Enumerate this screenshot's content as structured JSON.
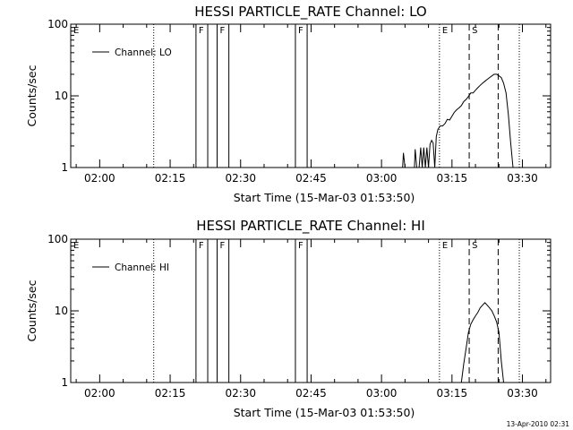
{
  "footer": {
    "timestamp": "13-Apr-2010 02:31"
  },
  "chart_data": [
    {
      "type": "line",
      "title": "HESSI PARTICLE_RATE Channel: LO",
      "xlabel": "Start Time (15-Mar-03 01:53:50)",
      "ylabel": "Counts/sec",
      "y_scale": "log",
      "ylim": [
        1,
        100
      ],
      "xlim": [
        "01:53:50",
        "03:36:00"
      ],
      "x_ticks": [
        "02:00",
        "02:15",
        "02:30",
        "02:45",
        "03:00",
        "03:15",
        "03:30"
      ],
      "y_ticks": [
        "1",
        "10",
        "100"
      ],
      "legend": {
        "position": "top-left",
        "label": "Channel: LO"
      },
      "series": [
        {
          "color": "#000000",
          "x": [
            "03:04:30",
            "03:04:40",
            "03:05:00",
            "03:05:30",
            "03:06:00",
            "03:06:10",
            "03:06:30",
            "03:07:00",
            "03:07:10",
            "03:07:30",
            "03:08:00",
            "03:08:20",
            "03:08:40",
            "03:09:00",
            "03:09:20",
            "03:09:40",
            "03:10:00",
            "03:10:20",
            "03:10:40",
            "03:11:00",
            "03:11:20",
            "03:11:40",
            "03:12:00",
            "03:12:30",
            "03:13:00",
            "03:13:30",
            "03:14:00",
            "03:14:30",
            "03:15:00",
            "03:15:30",
            "03:16:00",
            "03:16:30",
            "03:17:00",
            "03:17:30",
            "03:18:00",
            "03:18:30",
            "03:19:00",
            "03:19:30",
            "03:20:00",
            "03:20:30",
            "03:21:00",
            "03:21:30",
            "03:22:00",
            "03:22:30",
            "03:23:00",
            "03:23:30",
            "03:24:00",
            "03:24:30",
            "03:25:00",
            "03:25:30",
            "03:26:00",
            "03:26:30",
            "03:27:00",
            "03:27:30",
            "03:28:00"
          ],
          "values": [
            1.0,
            1.6,
            1.0,
            1.0,
            1.0,
            1.0,
            1.0,
            1.0,
            1.8,
            1.0,
            1.0,
            1.9,
            1.0,
            1.9,
            1.0,
            1.9,
            1.0,
            2.1,
            2.4,
            2.2,
            1.0,
            2.7,
            3.4,
            3.8,
            3.8,
            4.1,
            4.7,
            4.6,
            5.2,
            5.9,
            6.4,
            6.8,
            7.3,
            8.3,
            8.9,
            9.8,
            11.0,
            11.0,
            12.0,
            13.0,
            14.0,
            15.0,
            16.0,
            17.0,
            18.0,
            19.0,
            20.0,
            20.0,
            19.0,
            18.0,
            15.0,
            11.0,
            5.5,
            2.2,
            1.0
          ]
        }
      ],
      "markers": [
        {
          "label": "E",
          "time": "01:53:50",
          "style": "dotted"
        },
        {
          "label": "",
          "time": "02:11:30",
          "style": "dotted"
        },
        {
          "label": "F",
          "time": "02:20:30",
          "style": "solid"
        },
        {
          "label": "",
          "time": "02:23:00",
          "style": "solid"
        },
        {
          "label": "F",
          "time": "02:25:00",
          "style": "solid"
        },
        {
          "label": "",
          "time": "02:27:30",
          "style": "solid"
        },
        {
          "label": "F",
          "time": "02:41:40",
          "style": "solid"
        },
        {
          "label": "",
          "time": "02:44:10",
          "style": "solid"
        },
        {
          "label": "E",
          "time": "03:12:20",
          "style": "dotted"
        },
        {
          "label": "S",
          "time": "03:18:40",
          "style": "dashed"
        },
        {
          "label": "",
          "time": "03:24:50",
          "style": "dashed"
        },
        {
          "label": "",
          "time": "03:29:20",
          "style": "dotted"
        }
      ]
    },
    {
      "type": "line",
      "title": "HESSI PARTICLE_RATE Channel: HI",
      "xlabel": "Start Time (15-Mar-03 01:53:50)",
      "ylabel": "Counts/sec",
      "y_scale": "log",
      "ylim": [
        1,
        100
      ],
      "xlim": [
        "01:53:50",
        "03:36:00"
      ],
      "x_ticks": [
        "02:00",
        "02:15",
        "02:30",
        "02:45",
        "03:00",
        "03:15",
        "03:30"
      ],
      "y_ticks": [
        "1",
        "10",
        "100"
      ],
      "legend": {
        "position": "top-left",
        "label": "Channel: HI"
      },
      "series": [
        {
          "color": "#000000",
          "x": [
            "03:17:00",
            "03:17:30",
            "03:18:00",
            "03:18:30",
            "03:19:00",
            "03:19:30",
            "03:20:00",
            "03:20:30",
            "03:21:00",
            "03:21:30",
            "03:22:00",
            "03:22:30",
            "03:23:00",
            "03:23:30",
            "03:24:00",
            "03:24:30",
            "03:25:00",
            "03:25:30",
            "03:26:00"
          ],
          "values": [
            1.0,
            1.8,
            3.0,
            5.0,
            6.5,
            7.5,
            8.5,
            9.5,
            11.0,
            12.0,
            13.0,
            12.0,
            11.0,
            10.0,
            8.5,
            7.0,
            5.0,
            2.0,
            1.0
          ]
        }
      ],
      "markers": [
        {
          "label": "E",
          "time": "01:53:50",
          "style": "dotted"
        },
        {
          "label": "",
          "time": "02:11:30",
          "style": "dotted"
        },
        {
          "label": "F",
          "time": "02:20:30",
          "style": "solid"
        },
        {
          "label": "",
          "time": "02:23:00",
          "style": "solid"
        },
        {
          "label": "F",
          "time": "02:25:00",
          "style": "solid"
        },
        {
          "label": "",
          "time": "02:27:30",
          "style": "solid"
        },
        {
          "label": "F",
          "time": "02:41:40",
          "style": "solid"
        },
        {
          "label": "",
          "time": "02:44:10",
          "style": "solid"
        },
        {
          "label": "E",
          "time": "03:12:20",
          "style": "dotted"
        },
        {
          "label": "S",
          "time": "03:18:40",
          "style": "dashed"
        },
        {
          "label": "",
          "time": "03:24:50",
          "style": "dashed"
        },
        {
          "label": "",
          "time": "03:29:20",
          "style": "dotted"
        }
      ]
    }
  ]
}
